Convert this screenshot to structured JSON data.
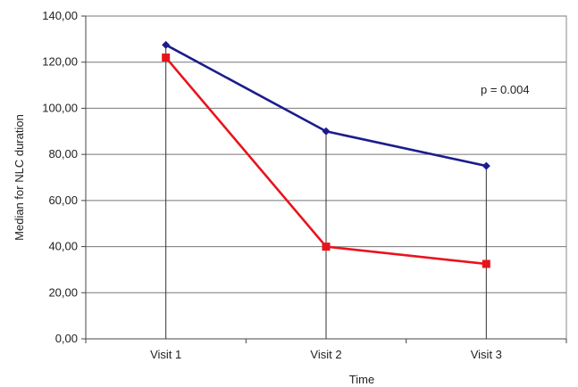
{
  "chart_data": {
    "type": "line",
    "categories": [
      "Visit 1",
      "Visit 2",
      "Visit 3"
    ],
    "series": [
      {
        "name": "",
        "color": "#1c1c8c",
        "marker": "diamond",
        "values": [
          127.5,
          90.0,
          75.0
        ]
      },
      {
        "name": "",
        "color": "#e8141c",
        "marker": "square",
        "values": [
          122.0,
          40.0,
          32.5
        ]
      }
    ],
    "ylim": [
      0,
      140
    ],
    "ytick_values": [
      0,
      20,
      40,
      60,
      80,
      100,
      120,
      140
    ],
    "ytick_labels": [
      "0,00",
      "20,00",
      "40,00",
      "60,00",
      "80,00",
      "100,00",
      "120,00",
      "140,00"
    ],
    "xlabel": "Time",
    "ylabel": "Median for NLC duration",
    "annotation": "p = 0.004",
    "grid": true
  }
}
